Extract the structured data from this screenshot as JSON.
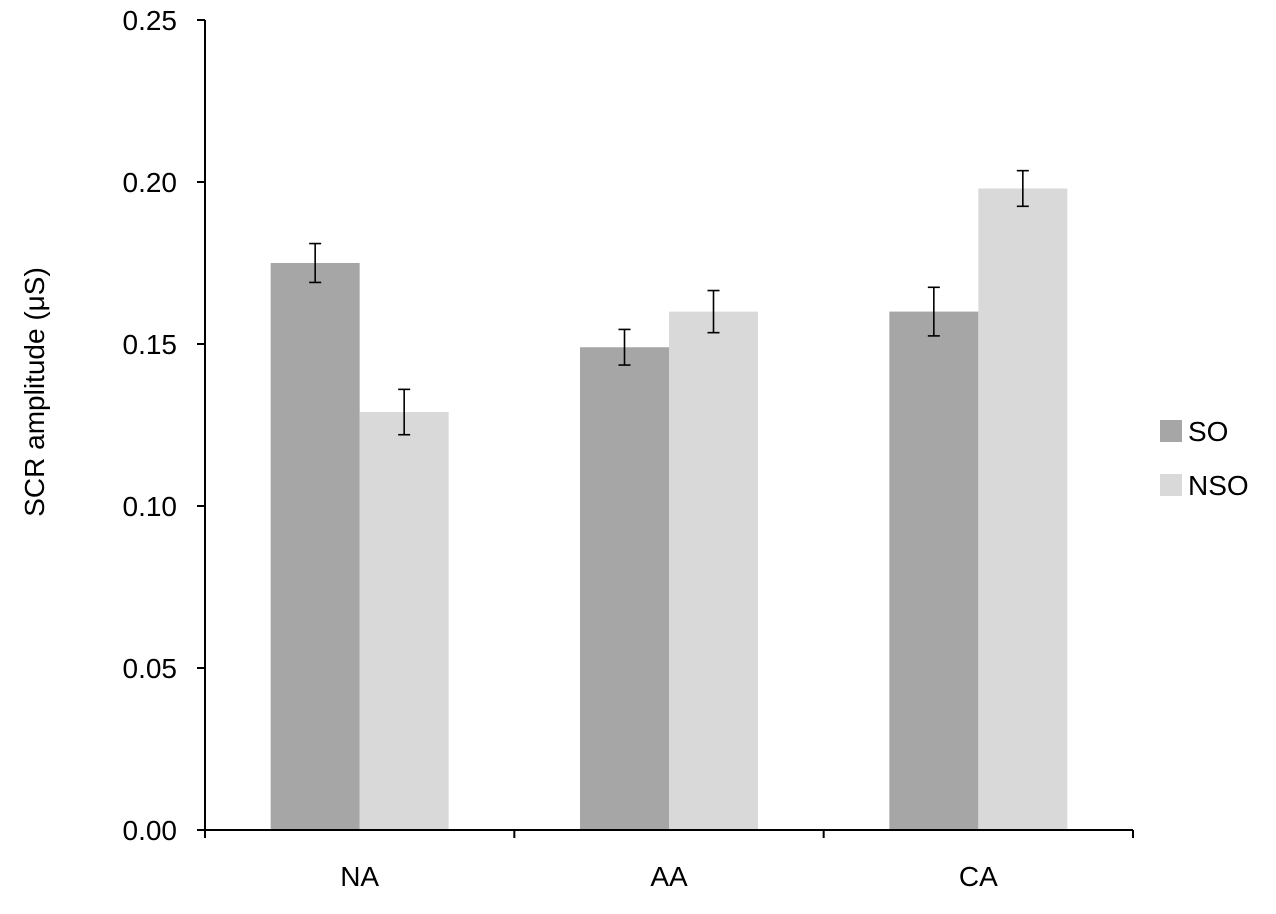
{
  "chart_data": {
    "type": "bar",
    "title": "",
    "xlabel": "",
    "ylabel": "SCR  amplitude (μS)",
    "categories": [
      "NA",
      "AA",
      "CA"
    ],
    "series": [
      {
        "name": "SO",
        "color": "#a6a6a6",
        "values": [
          0.175,
          0.149,
          0.16
        ],
        "errors": [
          0.006,
          0.0055,
          0.0075
        ]
      },
      {
        "name": "NSO",
        "color": "#d9d9d9",
        "values": [
          0.129,
          0.16,
          0.198
        ],
        "errors": [
          0.007,
          0.0065,
          0.0055
        ]
      }
    ],
    "ylim": [
      0,
      0.25
    ],
    "yticks": [
      "0.00",
      "0.05",
      "0.10",
      "0.15",
      "0.20",
      "0.25"
    ],
    "grid": false,
    "legend_position": "right"
  }
}
